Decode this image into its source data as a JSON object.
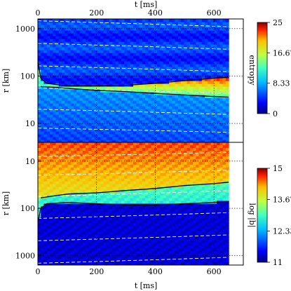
{
  "chart_data": [
    {
      "type": "heatmap",
      "panel": "top",
      "xlabel": "t [ms]",
      "ylabel": "r [km]",
      "x_ticks": [
        "0",
        "200",
        "400",
        "600"
      ],
      "x_tick_values": [
        0,
        200,
        400,
        600
      ],
      "y_ticks": [
        "1000",
        "100",
        "10"
      ],
      "y_tick_values": [
        1000,
        100,
        10
      ],
      "xlim": [
        0,
        700
      ],
      "ylim": [
        4,
        1600
      ],
      "y_scale": "log",
      "y_direction": "up",
      "data_end_t": 650,
      "shock_radius_curve": [
        [
          0,
          200
        ],
        [
          10,
          90
        ],
        [
          30,
          70
        ],
        [
          100,
          62
        ],
        [
          200,
          62
        ],
        [
          300,
          64
        ],
        [
          400,
          70
        ],
        [
          500,
          80
        ],
        [
          600,
          90
        ],
        [
          650,
          95
        ]
      ],
      "proto_ns_curve": [
        [
          10,
          60
        ],
        [
          50,
          58
        ],
        [
          100,
          55
        ],
        [
          200,
          50
        ],
        [
          300,
          47
        ],
        [
          400,
          43
        ],
        [
          500,
          40
        ],
        [
          600,
          37
        ],
        [
          650,
          36
        ]
      ],
      "colorbar": {
        "label": "entropy",
        "ticks": [
          "25",
          "16.67",
          "8.33",
          "0"
        ],
        "tick_values": [
          25,
          16.67,
          8.33,
          0
        ],
        "range": [
          0,
          25
        ]
      }
    },
    {
      "type": "heatmap",
      "panel": "bottom",
      "xlabel": "t [ms]",
      "ylabel": "r [km]",
      "x_ticks": [
        "0",
        "200",
        "400",
        "600"
      ],
      "x_tick_values": [
        0,
        200,
        400,
        600
      ],
      "y_ticks": [
        "10",
        "100",
        "1000"
      ],
      "y_tick_values": [
        10,
        100,
        1000
      ],
      "xlim": [
        0,
        700
      ],
      "ylim": [
        4,
        1600
      ],
      "y_scale": "log",
      "y_direction": "down",
      "data_end_t": 650,
      "shock_radius_curve": [
        [
          0,
          200
        ],
        [
          10,
          100
        ],
        [
          30,
          80
        ],
        [
          100,
          75
        ],
        [
          200,
          80
        ],
        [
          300,
          85
        ],
        [
          400,
          85
        ],
        [
          500,
          80
        ],
        [
          600,
          75
        ],
        [
          650,
          72
        ]
      ],
      "proto_ns_curve": [
        [
          10,
          60
        ],
        [
          50,
          55
        ],
        [
          100,
          50
        ],
        [
          200,
          47
        ],
        [
          300,
          42
        ],
        [
          400,
          38
        ],
        [
          500,
          33
        ],
        [
          600,
          30
        ],
        [
          650,
          28
        ]
      ],
      "colorbar": {
        "label": "log |b|",
        "ticks": [
          "15",
          "13.67",
          "12.33",
          "11"
        ],
        "tick_values": [
          15,
          13.67,
          12.33,
          11
        ],
        "range": [
          11,
          15
        ]
      }
    }
  ]
}
